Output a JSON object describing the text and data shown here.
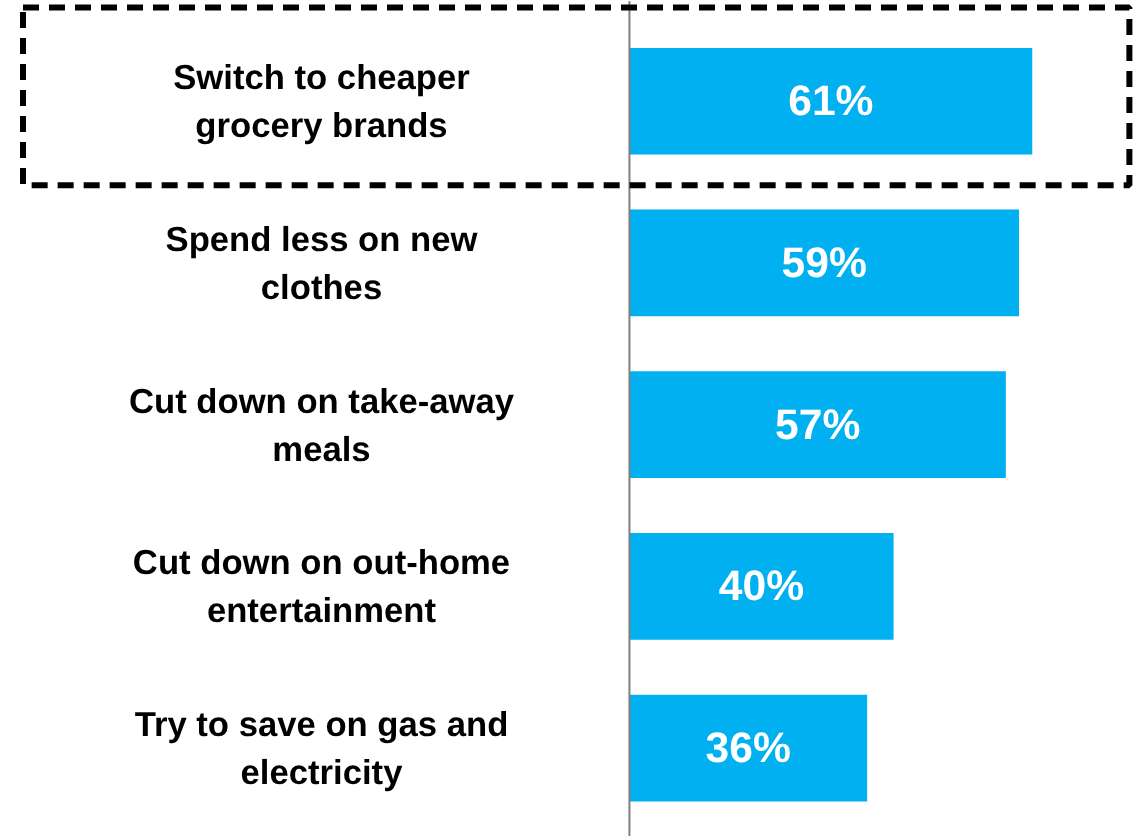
{
  "chart_data": {
    "type": "bar",
    "orientation": "horizontal",
    "categories": [
      "Switch to cheaper grocery brands",
      "Spend less on new clothes",
      "Cut down on take-away meals",
      "Cut down on out-home entertainment",
      "Try to save on gas and electricity"
    ],
    "values": [
      61,
      59,
      57,
      40,
      36
    ],
    "value_labels": [
      "61%",
      "59%",
      "57%",
      "40%",
      "36%"
    ],
    "color": "#00b0f0"
  }
}
